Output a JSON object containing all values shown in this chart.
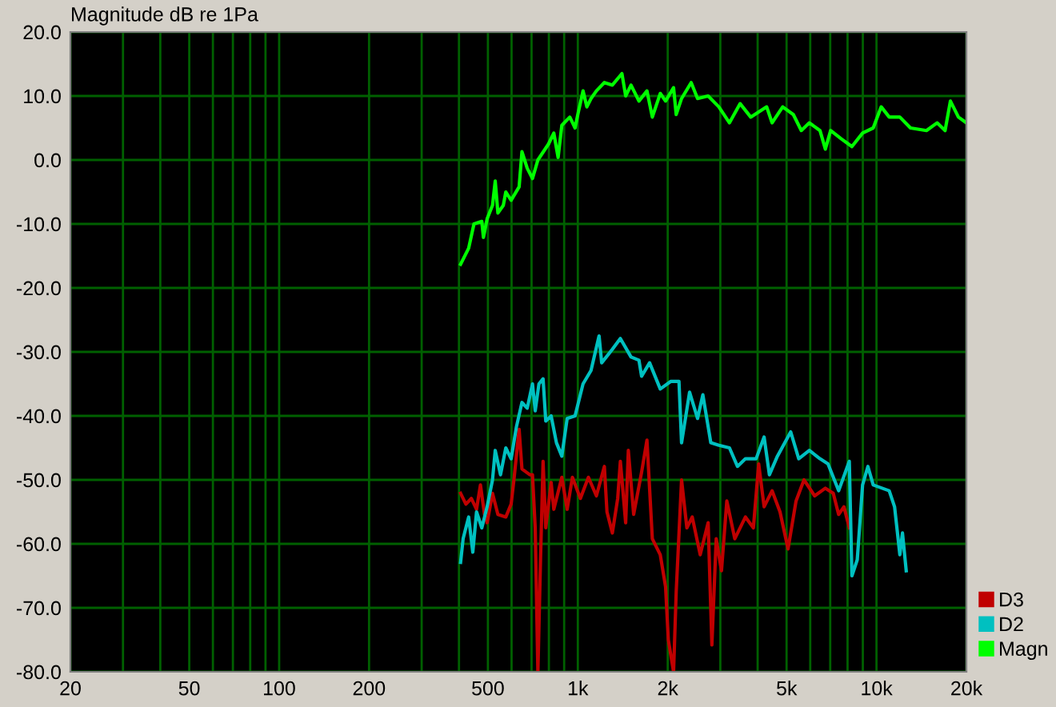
{
  "chart_data": {
    "type": "line",
    "ylabel": "Magnitude dB re 1Pa",
    "log": "x",
    "grid": true,
    "legend": "bottom right",
    "xlim": [
      20,
      20000
    ],
    "ylim": [
      -80,
      20
    ],
    "xticks": [
      20,
      {
        "value": 30,
        "label": null
      },
      {
        "value": 40,
        "label": null
      },
      50,
      {
        "value": 60,
        "label": null
      },
      {
        "value": 70,
        "label": null
      },
      {
        "value": 80,
        "label": null
      },
      {
        "value": 90,
        "label": null
      },
      100,
      200,
      {
        "value": 300,
        "label": null
      },
      {
        "value": 400,
        "label": null
      },
      500,
      {
        "value": 600,
        "label": null
      },
      {
        "value": 700,
        "label": null
      },
      {
        "value": 800,
        "label": null
      },
      {
        "value": 900,
        "label": null
      },
      {
        "value": 1000,
        "label": "1k"
      },
      {
        "value": 2000,
        "label": "2k"
      },
      {
        "value": 3000,
        "label": null
      },
      {
        "value": 4000,
        "label": null
      },
      {
        "value": 5000,
        "label": "5k"
      },
      {
        "value": 6000,
        "label": null
      },
      {
        "value": 7000,
        "label": null
      },
      {
        "value": 8000,
        "label": null
      },
      {
        "value": 9000,
        "label": null
      },
      {
        "value": 10000,
        "label": "10k"
      },
      {
        "value": 20000,
        "label": "20k"
      }
    ],
    "yticks": [
      {
        "value": 20,
        "label": "20.0"
      },
      {
        "value": 10,
        "label": "10.0"
      },
      {
        "value": 0,
        "label": "0.0"
      },
      {
        "value": -10,
        "label": "-10.0"
      },
      {
        "value": -20,
        "label": "-20.0"
      },
      {
        "value": -30,
        "label": "-30.0"
      },
      {
        "value": -40,
        "label": "-40.0"
      },
      {
        "value": -50,
        "label": "-50.0"
      },
      {
        "value": -60,
        "label": "-60.0"
      },
      {
        "value": -70,
        "label": "-70.0"
      },
      {
        "value": -80,
        "label": "-80.0"
      }
    ],
    "series": [
      {
        "name": "D3",
        "color": "#c00000",
        "x": [
          405,
          422,
          440,
          458,
          472,
          487,
          497,
          518,
          540,
          574,
          598,
          611,
          636,
          650,
          691,
          705,
          720,
          735,
          750,
          765,
          781,
          814,
          831,
          884,
          921,
          959,
          1020,
          1085,
          1154,
          1227,
          1252,
          1305,
          1360,
          1388,
          1446,
          1476,
          1538,
          1635,
          1704,
          1776,
          1888,
          1967,
          2009,
          2092,
          2135,
          2225,
          2318,
          2416,
          2569,
          2731,
          2811,
          2906,
          3027,
          3154,
          3354,
          3641,
          3871,
          4033,
          4204,
          4471,
          4753,
          5056,
          5378,
          5718,
          6208,
          6742,
          7166,
          7469,
          7780,
          8109
        ],
        "values": [
          -52.1,
          -53.8,
          -52.9,
          -54.6,
          -50.8,
          -55.4,
          -56.7,
          -52.1,
          -55.4,
          -55.8,
          -53.8,
          -50,
          -42.1,
          -48.3,
          -49.2,
          -49.2,
          -57.5,
          -80,
          -62.5,
          -47.1,
          -57.5,
          -50.4,
          -54.6,
          -49.6,
          -54.6,
          -49.6,
          -52.9,
          -49.6,
          -52.5,
          -47.9,
          -55,
          -58.3,
          -52.9,
          -47.1,
          -56.7,
          -45.4,
          -55.4,
          -48.8,
          -43.8,
          -59.2,
          -61.7,
          -66.7,
          -75,
          -80,
          -67.5,
          -50,
          -57.5,
          -55.8,
          -61.7,
          -56.7,
          -75.8,
          -59.2,
          -64.2,
          -53.3,
          -59.2,
          -55.8,
          -57.5,
          -47.5,
          -54.2,
          -51.7,
          -55,
          -60.8,
          -53.3,
          -50,
          -52.5,
          -51.3,
          -52.1,
          -55.4,
          -54.2,
          -57.5
        ]
      },
      {
        "name": "D2",
        "color": "#00c0c0",
        "x": [
          405,
          413,
          431,
          445,
          458,
          477,
          497,
          518,
          529,
          551,
          574,
          598,
          623,
          650,
          677,
          705,
          720,
          741,
          765,
          781,
          814,
          848,
          884,
          921,
          979,
          1041,
          1107,
          1178,
          1202,
          1305,
          1388,
          1507,
          1602,
          1635,
          1739,
          1888,
          2050,
          2181,
          2225,
          2367,
          2517,
          2622,
          2788,
          2966,
          3219,
          3424,
          3641,
          3953,
          4204,
          4380,
          4658,
          5162,
          5491,
          5959,
          6468,
          6881,
          7469,
          8109,
          8274,
          8621,
          8983,
          9359,
          9751,
          11030,
          11495,
          11973,
          12218,
          12577
        ],
        "values": [
          -62.9,
          -59.2,
          -55.8,
          -61.3,
          -55,
          -57.5,
          -54.2,
          -50,
          -45.4,
          -49.2,
          -45,
          -46.7,
          -41.7,
          -37.9,
          -38.8,
          -35,
          -39.2,
          -35,
          -34.2,
          -40.8,
          -40,
          -44.2,
          -46.3,
          -40.4,
          -40,
          -35,
          -32.9,
          -27.5,
          -31.7,
          -29.6,
          -27.9,
          -30.8,
          -31.3,
          -33.8,
          -31.7,
          -35.8,
          -34.6,
          -34.6,
          -44.2,
          -36.3,
          -40.4,
          -36.7,
          -44.2,
          -44.6,
          -45,
          -47.9,
          -46.7,
          -46.7,
          -43.3,
          -49.2,
          -46.3,
          -42.5,
          -46.7,
          -45.4,
          -46.7,
          -47.5,
          -51.7,
          -47.1,
          -65,
          -62.5,
          -50.8,
          -47.9,
          -50.8,
          -51.7,
          -54.2,
          -61.7,
          -58.3,
          -64.2
        ]
      },
      {
        "name": "Magn",
        "color": "#00ff00",
        "x": [
          405,
          431,
          449,
          477,
          483,
          497,
          518,
          529,
          540,
          563,
          574,
          598,
          636,
          650,
          677,
          705,
          735,
          798,
          831,
          859,
          884,
          940,
          979,
          1000,
          1041,
          1072,
          1107,
          1154,
          1227,
          1305,
          1405,
          1446,
          1507,
          1602,
          1704,
          1776,
          1888,
          1967,
          2092,
          2135,
          2225,
          2396,
          2517,
          2731,
          2966,
          3219,
          3495,
          3792,
          4289,
          4471,
          4852,
          5268,
          5601,
          5959,
          6468,
          6742,
          7020,
          7623,
          8274,
          8983,
          9751,
          10372,
          11030,
          11973,
          12994,
          14701,
          15955,
          16971,
          17681,
          18803,
          19998
        ],
        "values": [
          -16.3,
          -13.8,
          -10,
          -9.6,
          -12.1,
          -9.2,
          -7.1,
          -3.3,
          -8.3,
          -7.1,
          -5,
          -6.3,
          -4.2,
          1.3,
          -1.3,
          -2.9,
          0,
          2.5,
          4.2,
          0.4,
          5.4,
          6.7,
          5,
          7.1,
          10.8,
          8.3,
          9.6,
          10.8,
          12.1,
          11.7,
          13.5,
          10,
          11.7,
          9.2,
          10.8,
          6.7,
          10.4,
          9.2,
          11.3,
          7.1,
          9.6,
          12.1,
          9.6,
          10,
          8.3,
          5.8,
          8.8,
          6.7,
          8.3,
          5.8,
          8.3,
          7.1,
          4.6,
          5.8,
          4.6,
          1.7,
          4.6,
          3.3,
          2.1,
          4.2,
          5,
          8.3,
          6.7,
          6.7,
          5,
          4.6,
          5.8,
          4.6,
          9.2,
          6.7,
          5.8
        ]
      }
    ]
  }
}
